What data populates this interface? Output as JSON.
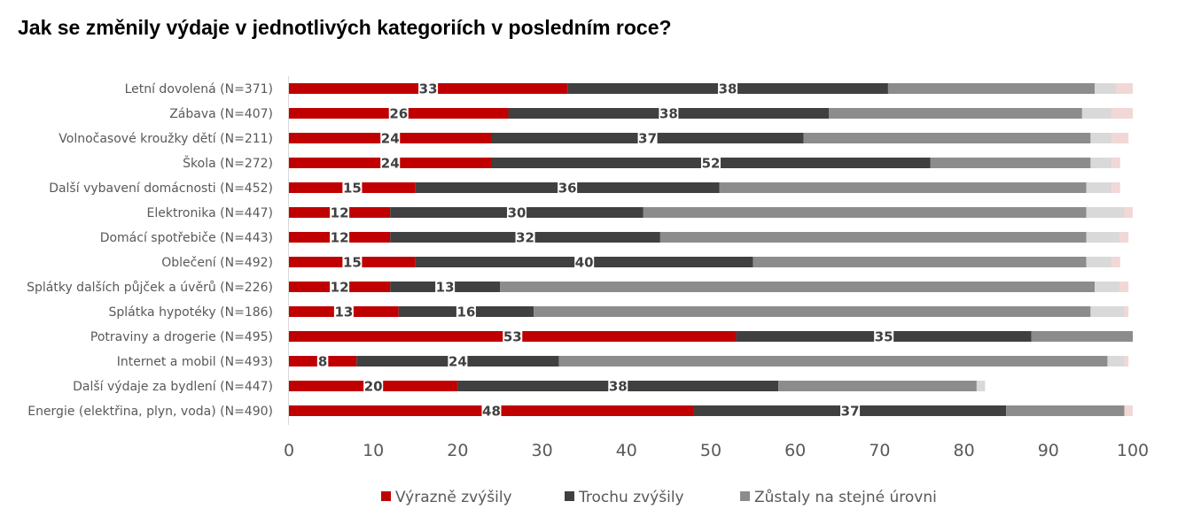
{
  "title": "Jak se změnily výdaje v jednotlivých kategoriích v posledním roce?",
  "chart_data": {
    "type": "bar",
    "orientation": "horizontal",
    "stacked": true,
    "title": "Jak se změnily výdaje v jednotlivých kategoriích v posledním roce?",
    "xlim": [
      0,
      100
    ],
    "xticks": [
      0,
      10,
      20,
      30,
      40,
      50,
      60,
      70,
      80,
      90,
      100
    ],
    "grid": false,
    "legend_position": "bottom",
    "categories": [
      "Letní dovolená (N=371)",
      "Zábava (N=407)",
      "Volnočasové kroužky dětí (N=211)",
      "Škola (N=272)",
      "Další vybavení domácnosti (N=452)",
      "Elektronika (N=447)",
      "Domácí spotřebiče (N=443)",
      "Oblečení (N=492)",
      "Splátky dalších půjček a úvěrů (N=226)",
      "Splátka hypotéky (N=186)",
      "Potraviny a drogerie (N=495)",
      "Internet a mobil (N=493)",
      "Další výdaje za bydlení (N=447)",
      "Energie (elektřina, plyn, voda) (N=490)"
    ],
    "series": [
      {
        "name": "Výrazně zvýšily",
        "color": "#c00000",
        "labeled": true,
        "values": [
          33,
          26,
          24,
          24,
          15,
          12,
          12,
          15,
          12,
          13,
          53,
          8,
          20,
          48
        ]
      },
      {
        "name": "Trochu zvýšily",
        "color": "#404040",
        "labeled": true,
        "values": [
          38,
          38,
          37,
          52,
          36,
          30,
          32,
          40,
          13,
          16,
          35,
          24,
          38,
          37
        ]
      },
      {
        "name": "Zůstaly na stejné úrovni",
        "color": "#8c8c8c",
        "labeled": false,
        "values": [
          24.5,
          30,
          34,
          19,
          43.5,
          52.5,
          50.5,
          39.5,
          70.5,
          66,
          12,
          65,
          23.5,
          14
        ]
      },
      {
        "name": "",
        "color": "#d9d9d9",
        "labeled": false,
        "values": [
          2.5,
          3.5,
          2.5,
          2.5,
          3,
          4.5,
          4,
          3,
          3,
          4,
          0,
          2,
          1,
          0
        ]
      },
      {
        "name": "",
        "color": "#f2d7d7",
        "labeled": false,
        "values": [
          2,
          2.5,
          2,
          1,
          1,
          1,
          1,
          1,
          1,
          0.5,
          0,
          0.5,
          0,
          1
        ]
      }
    ]
  }
}
